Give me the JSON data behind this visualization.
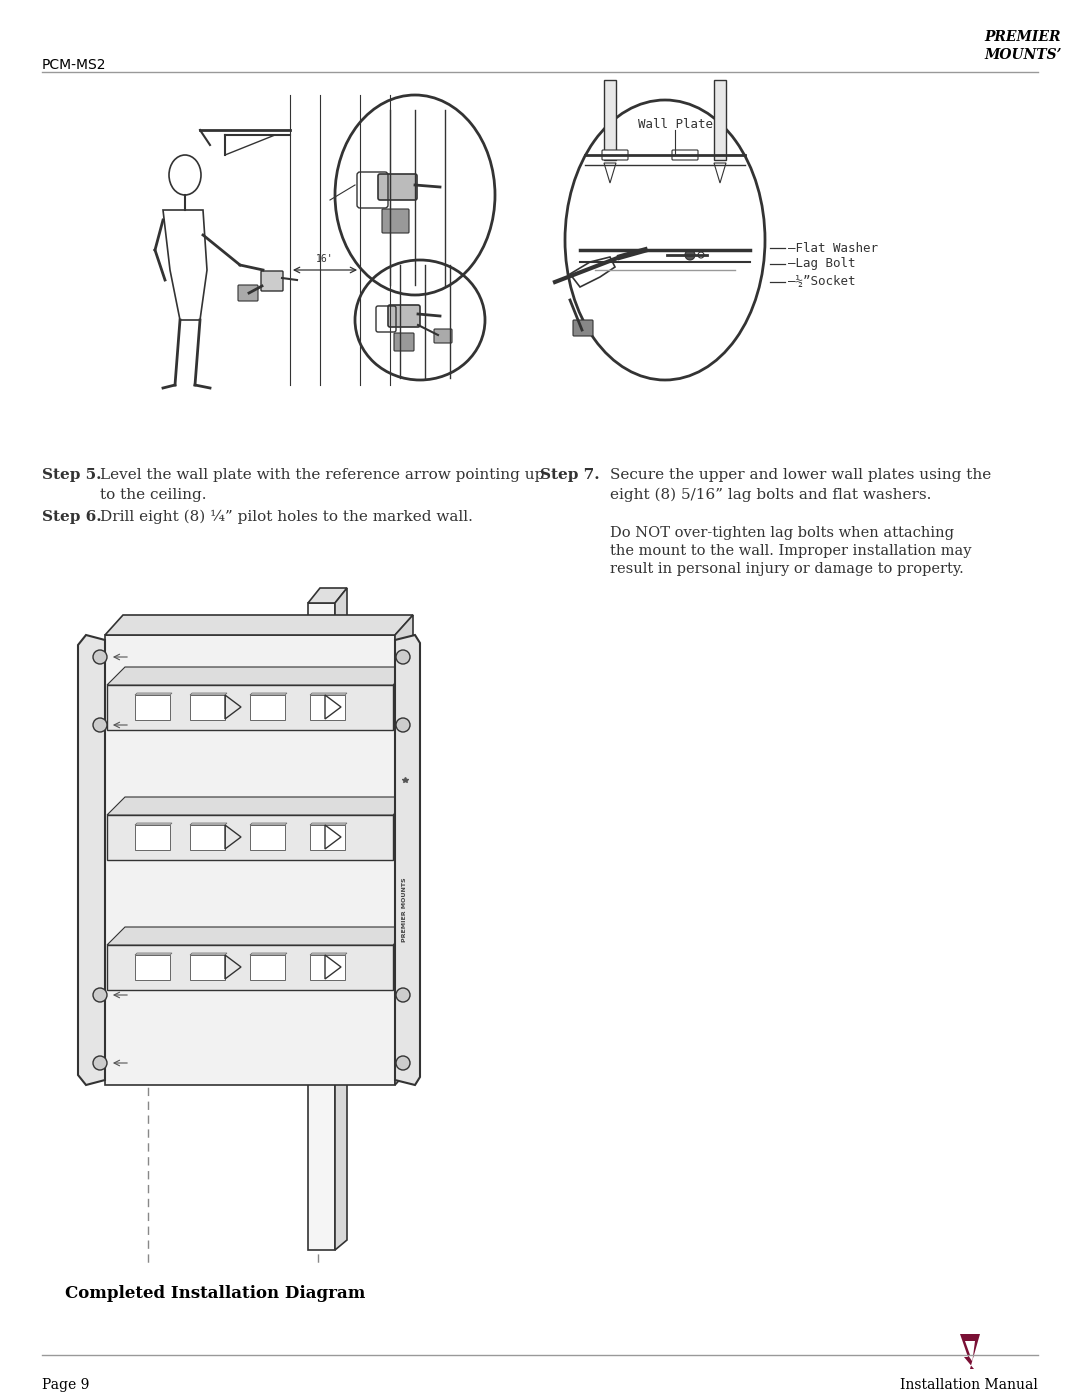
{
  "page_model": "PCM-MS2",
  "page_number": "Page 9",
  "page_title": "Installation Manual",
  "brand_name_line1": "PREMIER",
  "brand_name_line2": "MOUNTS’",
  "step5_label": "Step 5.",
  "step5_text1": "Level the wall plate with the reference arrow pointing up",
  "step5_text2": "to the ceiling.",
  "step6_label": "Step 6.",
  "step6_text": "Drill eight (8) ¼” pilot holes to the marked wall.",
  "step7_label": "Step 7.",
  "step7_text1": "Secure the upper and lower wall plates using the",
  "step7_text2": "eight (8) 5/16” lag bolts and flat washers.",
  "step7_warn1": "Do NOT over-tighten lag bolts when attaching",
  "step7_warn2": "the mount to the wall. Improper installation may",
  "step7_warn3": "result in personal injury or damage to property.",
  "completed_label": "Completed Installation Diagram",
  "callout_wall_plate": "Wall Plate",
  "callout_flat_washer": "Flat Washer",
  "callout_lag_bolt": "Lag Bolt",
  "callout_socket": "½”Socket",
  "bg_color": "#ffffff",
  "text_color": "#000000",
  "line_color": "#666666",
  "draw_color": "#333333",
  "brand_color": "#7a1035"
}
